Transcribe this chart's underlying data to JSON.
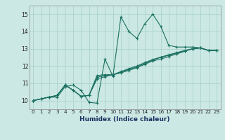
{
  "xlabel": "Humidex (Indice chaleur)",
  "bg_color": "#cce8e4",
  "grid_color": "#aad4cc",
  "line_color": "#1a7060",
  "xlim": [
    -0.5,
    23.5
  ],
  "ylim": [
    9.5,
    15.5
  ],
  "xticks": [
    0,
    1,
    2,
    3,
    4,
    5,
    6,
    7,
    8,
    9,
    10,
    11,
    12,
    13,
    14,
    15,
    16,
    17,
    18,
    19,
    20,
    21,
    22,
    23
  ],
  "yticks": [
    10,
    11,
    12,
    13,
    14,
    15
  ],
  "lines": [
    [
      10.0,
      10.1,
      10.2,
      10.2,
      10.8,
      10.9,
      10.6,
      9.9,
      9.85,
      12.4,
      11.4,
      14.85,
      14.0,
      13.6,
      14.45,
      15.0,
      14.3,
      13.2,
      13.1,
      13.1,
      13.1,
      13.05,
      12.9,
      12.9
    ],
    [
      10.0,
      10.1,
      10.2,
      10.3,
      10.9,
      10.6,
      10.25,
      10.3,
      11.45,
      11.5,
      11.5,
      11.6,
      11.75,
      11.9,
      12.1,
      12.3,
      12.4,
      12.55,
      12.7,
      12.85,
      13.0,
      13.05,
      12.9,
      12.9
    ],
    [
      10.0,
      10.1,
      10.2,
      10.3,
      10.9,
      10.6,
      10.25,
      10.3,
      11.35,
      11.45,
      11.5,
      11.65,
      11.8,
      11.95,
      12.15,
      12.35,
      12.5,
      12.62,
      12.75,
      12.88,
      13.0,
      13.05,
      12.9,
      12.9
    ],
    [
      10.0,
      10.1,
      10.2,
      10.3,
      10.9,
      10.6,
      10.25,
      10.3,
      11.25,
      11.38,
      11.5,
      11.68,
      11.85,
      12.0,
      12.2,
      12.38,
      12.52,
      12.65,
      12.78,
      12.9,
      13.0,
      13.05,
      12.9,
      12.9
    ]
  ],
  "xlabel_fontsize": 6.5,
  "xlabel_color": "#1a3060",
  "tick_fontsize": 5.2
}
